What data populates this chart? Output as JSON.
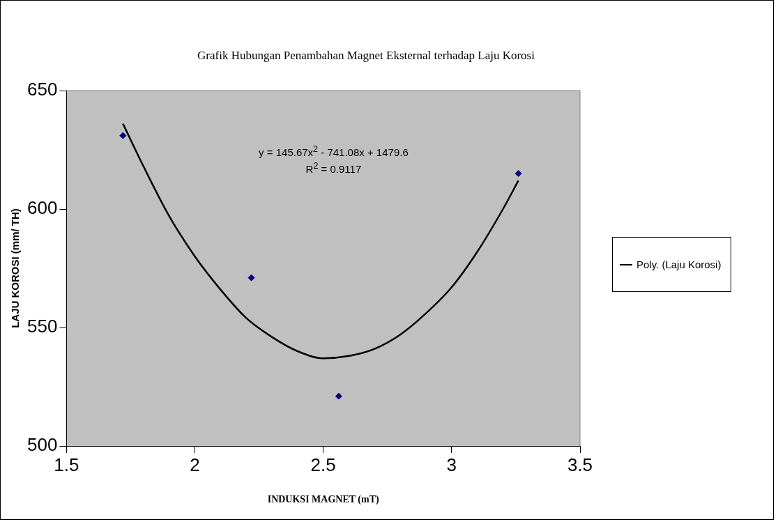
{
  "chart_data": {
    "type": "scatter",
    "title": "Grafik Hubungan Penambahan Magnet Eksternal terhadap Laju Korosi",
    "xlabel": "INDUKSI MAGNET (mT)",
    "ylabel": "LAJU KOROSI (mm/ TH)",
    "xlim": [
      1.5,
      3.5
    ],
    "xticks": [
      1.5,
      2,
      2.5,
      3,
      3.5
    ],
    "ylim": [
      500,
      650
    ],
    "yticks": [
      500,
      550,
      600,
      650
    ],
    "grid": false,
    "legend": "right",
    "series": [
      {
        "color": "#000080",
        "marker": "diamond",
        "x": [
          1.72,
          2.22,
          2.56,
          3.26
        ],
        "values": [
          631,
          571,
          521,
          615
        ]
      },
      {
        "type": "line",
        "name": "Poly. (Laju Korosi)",
        "color": "#000000",
        "marker": "none",
        "line_style": "solid",
        "x": [
          1.72,
          1.8,
          1.9,
          2.0,
          2.1,
          2.2,
          2.3,
          2.4,
          2.5,
          2.6,
          2.7,
          2.8,
          2.9,
          3.0,
          3.1,
          3.2,
          3.26
        ],
        "values": [
          636,
          618,
          597,
          580,
          566,
          554,
          546,
          540,
          537,
          538,
          541,
          547,
          556,
          567,
          582,
          600,
          612
        ]
      }
    ],
    "annotations": [
      "y = 145.67x$^{2}$ - 741.08x + 1479.6",
      "R$^{2}$ = 0.9117"
    ]
  }
}
